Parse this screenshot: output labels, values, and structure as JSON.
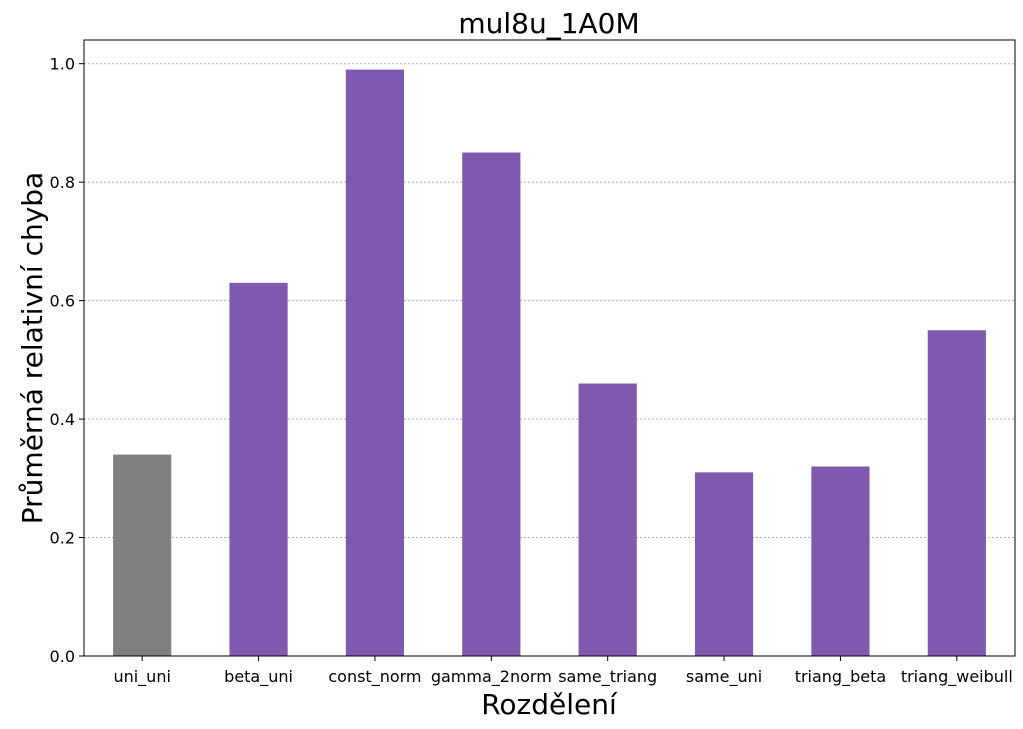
{
  "chart_data": {
    "type": "bar",
    "title": "mul8u_1A0M",
    "xlabel": "Rozdělení",
    "ylabel": "Průměrná relativní chyba",
    "categories": [
      "uni_uni",
      "beta_uni",
      "const_norm",
      "gamma_2norm",
      "same_triang",
      "same_uni",
      "triang_beta",
      "triang_weibull"
    ],
    "values": [
      0.34,
      0.63,
      0.99,
      0.85,
      0.46,
      0.31,
      0.32,
      0.55
    ],
    "colors": [
      "#808080",
      "#7f59b0",
      "#7f59b0",
      "#7f59b0",
      "#7f59b0",
      "#7f59b0",
      "#7f59b0",
      "#7f59b0"
    ],
    "ylim": [
      0,
      1.04
    ],
    "yticks": [
      0.0,
      0.2,
      0.4,
      0.6,
      0.8,
      1.0
    ],
    "ytick_labels": [
      "0.0",
      "0.2",
      "0.4",
      "0.6",
      "0.8",
      "1.0"
    ],
    "grid": "y-dotted",
    "legend": "none"
  }
}
